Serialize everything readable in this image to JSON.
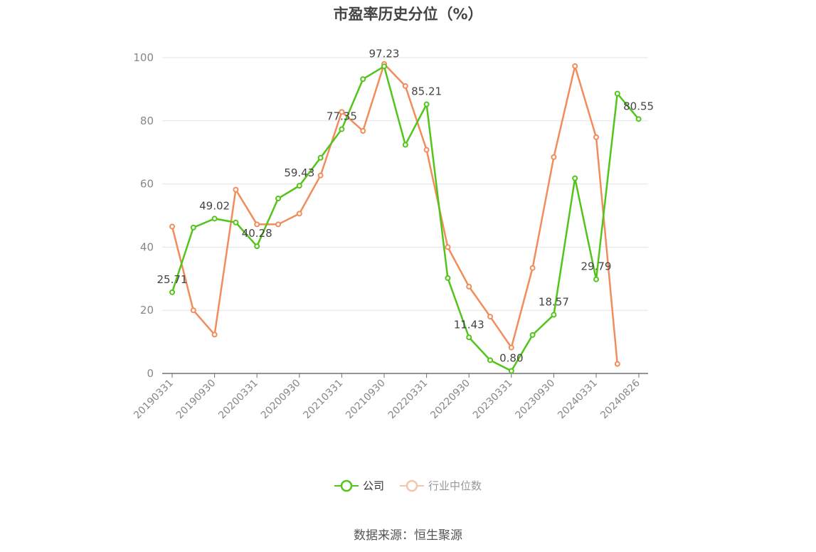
{
  "chart_data": {
    "type": "line",
    "title": "市盈率历史分位（%）",
    "x_tick_labels": [
      "20190331",
      "20190930",
      "20200331",
      "20200930",
      "20210331",
      "20210930",
      "20220331",
      "20220930",
      "20230331",
      "20230930",
      "20240331",
      "20240826"
    ],
    "y_tick_labels": [
      "0",
      "20",
      "40",
      "60",
      "80",
      "100"
    ],
    "ylim": [
      0,
      100
    ],
    "grid": true,
    "legend_position": "bottom",
    "series": [
      {
        "name": "公司",
        "color": "#52c41a",
        "values": [
          25.71,
          46.2,
          49.02,
          47.8,
          40.28,
          55.4,
          59.43,
          68.3,
          77.35,
          93.2,
          97.23,
          72.4,
          85.21,
          30.2,
          11.43,
          4.2,
          0.8,
          12.2,
          18.57,
          61.8,
          29.79,
          88.6,
          80.55
        ],
        "labels": [
          "25.71",
          "",
          "49.02",
          "",
          "40.28",
          "",
          "59.43",
          "",
          "77.35",
          "",
          "97.23",
          "",
          "85.21",
          "",
          "11.43",
          "",
          "0.80",
          "",
          "18.57",
          "",
          "29.79",
          "",
          "80.55"
        ]
      },
      {
        "name": "行业中位数",
        "color": "#f28c5b",
        "values": [
          46.5,
          20.0,
          12.3,
          58.2,
          47.2,
          47.2,
          50.6,
          62.7,
          82.8,
          76.8,
          98.0,
          91.0,
          70.8,
          40.0,
          27.5,
          18.0,
          8.2,
          33.4,
          68.5,
          97.3,
          74.8,
          3.0,
          null
        ]
      }
    ]
  },
  "legend": {
    "company": "公司",
    "industry": "行业中位数"
  },
  "source": "数据来源：恒生聚源"
}
